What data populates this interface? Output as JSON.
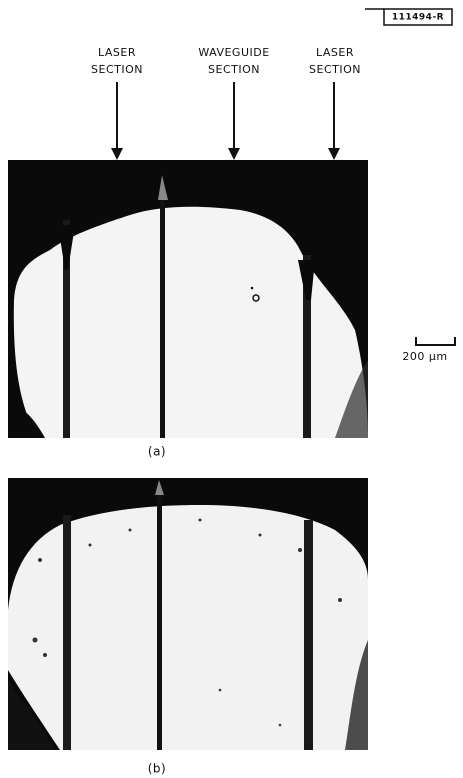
{
  "figure_id": "111494-R",
  "labels": [
    {
      "lines": [
        "LASER",
        "SECTION"
      ]
    },
    {
      "lines": [
        "WAVEGUIDE",
        "SECTION"
      ]
    },
    {
      "lines": [
        "LASER",
        "SECTION"
      ]
    }
  ],
  "scale_bar": "200 μm",
  "panels": [
    {
      "label": "(a)"
    },
    {
      "label": "(b)"
    }
  ]
}
